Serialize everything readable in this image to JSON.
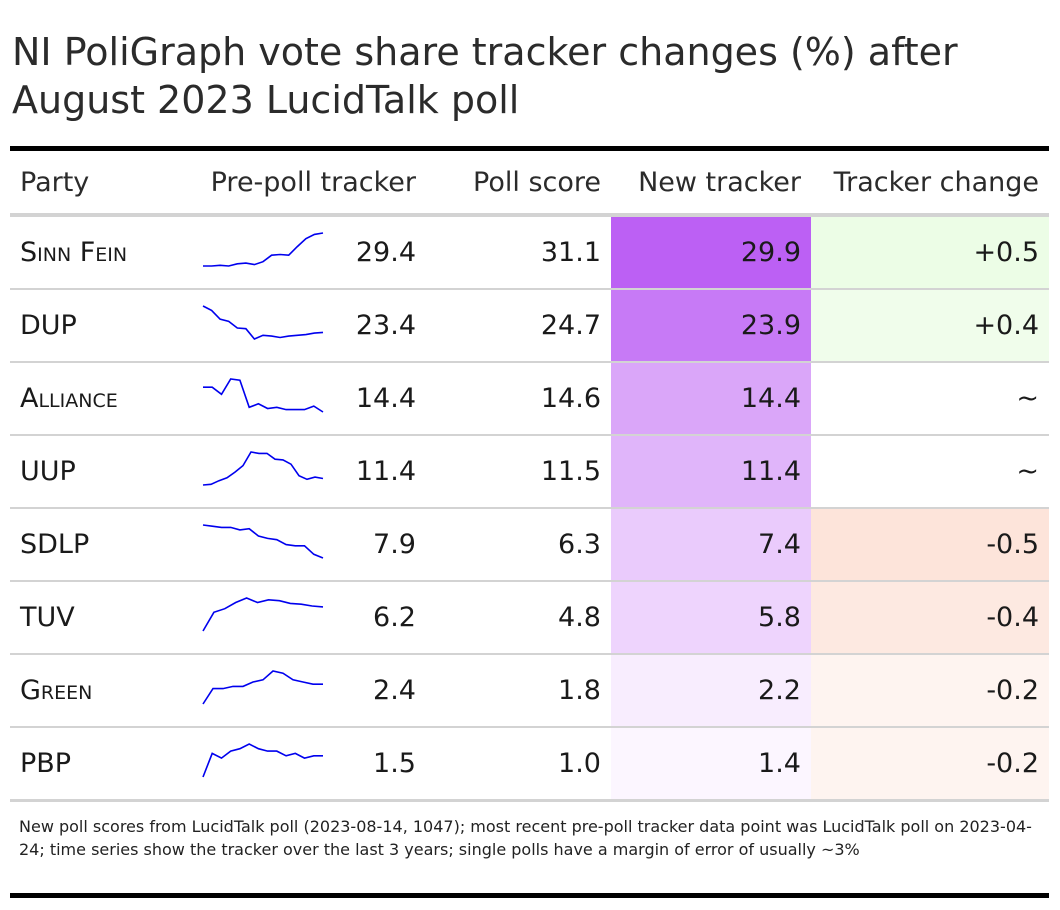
{
  "title": "NI PoliGraph vote share tracker changes (%) after August 2023 LucidTalk poll",
  "headers": {
    "party": "Party",
    "pre": "Pre-poll tracker",
    "poll": "Poll score",
    "new": "New tracker",
    "change": "Tracker change"
  },
  "footnote": "New poll scores from LucidTalk poll (2023-08-14, 1047); most recent pre-poll tracker data point was LucidTalk poll on 2023-04-24; time series show the tracker over the last 3 years; single polls have a margin of error of usually ~3%",
  "colors": {
    "sparkline": "#0000ee",
    "positive_change": "#ecfde6",
    "negative_change": "#fde4da",
    "new_tracker_scale": [
      "#fcf6ff",
      "#bc60f4"
    ]
  },
  "chart_data": {
    "type": "table",
    "rows": [
      {
        "party": "Sinn Fein",
        "pre": "29.4",
        "poll": "31.1",
        "new": "29.9",
        "change": "+0.5",
        "new_value": 29.9,
        "change_value": 0.5,
        "trend": [
          24.8,
          24.8,
          24.9,
          24.8,
          25.1,
          25.2,
          25.0,
          25.4,
          26.3,
          26.4,
          26.3,
          27.5,
          28.6,
          29.2,
          29.4
        ]
      },
      {
        "party": "DUP",
        "pre": "23.4",
        "poll": "24.7",
        "new": "23.9",
        "change": "+0.4",
        "new_value": 23.9,
        "change_value": 0.4,
        "trend": [
          27.0,
          26.4,
          25.2,
          24.9,
          24.0,
          23.9,
          22.5,
          23.0,
          22.9,
          22.7,
          22.9,
          23.0,
          23.1,
          23.3,
          23.4
        ]
      },
      {
        "party": "Alliance",
        "pre": "14.4",
        "poll": "14.6",
        "new": "14.4",
        "change": "~",
        "new_value": 14.4,
        "change_value": 0.0,
        "trend": [
          16.5,
          16.5,
          15.9,
          17.2,
          17.1,
          14.8,
          15.1,
          14.7,
          14.8,
          14.6,
          14.6,
          14.6,
          14.9,
          14.4
        ]
      },
      {
        "party": "UUP",
        "pre": "11.4",
        "poll": "11.5",
        "new": "11.4",
        "change": "~",
        "new_value": 11.4,
        "change_value": 0.0,
        "trend": [
          10.5,
          10.6,
          11.1,
          11.5,
          12.3,
          13.2,
          15.1,
          14.9,
          14.9,
          14.1,
          14.0,
          13.4,
          11.8,
          11.3,
          11.6,
          11.4
        ]
      },
      {
        "party": "SDLP",
        "pre": "7.9",
        "poll": "6.3",
        "new": "7.4",
        "change": "-0.5",
        "new_value": 7.4,
        "change_value": -0.5,
        "trend": [
          10.6,
          10.5,
          10.4,
          10.4,
          10.2,
          10.3,
          9.7,
          9.5,
          9.4,
          9.0,
          8.9,
          8.9,
          8.2,
          7.9
        ]
      },
      {
        "party": "TUV",
        "pre": "6.2",
        "poll": "4.8",
        "new": "5.8",
        "change": "-0.4",
        "new_value": 5.8,
        "change_value": -0.4,
        "trend": [
          3.5,
          5.6,
          6.0,
          6.7,
          7.2,
          6.7,
          7.0,
          6.9,
          6.6,
          6.5,
          6.3,
          6.2
        ]
      },
      {
        "party": "Green",
        "pre": "2.4",
        "poll": "1.8",
        "new": "2.2",
        "change": "-0.2",
        "new_value": 2.2,
        "change_value": -0.2,
        "trend": [
          1.5,
          2.2,
          2.2,
          2.3,
          2.3,
          2.5,
          2.6,
          3.0,
          2.9,
          2.6,
          2.5,
          2.4,
          2.4
        ]
      },
      {
        "party": "PBP",
        "pre": "1.5",
        "poll": "1.0",
        "new": "1.4",
        "change": "-0.2",
        "new_value": 1.4,
        "change_value": -0.2,
        "trend": [
          0.6,
          1.6,
          1.4,
          1.7,
          1.8,
          2.0,
          1.8,
          1.7,
          1.7,
          1.5,
          1.6,
          1.4,
          1.5,
          1.5
        ]
      }
    ]
  }
}
